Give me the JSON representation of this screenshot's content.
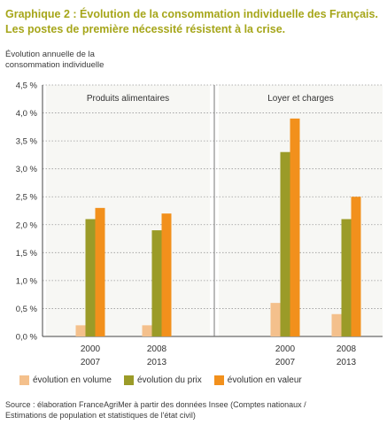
{
  "title_line1": "Graphique 2 : Évolution de la consommation individuelle des Français.",
  "title_line2": "Les postes de première nécessité résistent à la crise.",
  "ylabel_line1": "Évolution annuelle de la",
  "ylabel_line2": "consommation individuelle",
  "source_line1": "Source : élaboration FranceAgriMer à partir des données Insee (Comptes nationaux /",
  "source_line2": "Estimations de population et statistiques de l'état civil)",
  "chart_data": {
    "type": "bar",
    "yticks": [
      "0,0 %",
      "0,5 %",
      "1,0 %",
      "1,5 %",
      "2,0 %",
      "2,5 %",
      "3,0 %",
      "3,5 %",
      "4,0 %",
      "4,5 %"
    ],
    "ylim": [
      0,
      4.5
    ],
    "grid": true,
    "legend": "bottom",
    "panels": [
      {
        "label": "Produits alimentaires",
        "groups": [
          {
            "label_top": "2000",
            "label_bottom": "2007"
          },
          {
            "label_top": "2008",
            "label_bottom": "2013"
          }
        ]
      },
      {
        "label": "Loyer et charges",
        "groups": [
          {
            "label_top": "2000",
            "label_bottom": "2007"
          },
          {
            "label_top": "2008",
            "label_bottom": "2013"
          }
        ]
      }
    ],
    "series": [
      {
        "name": "évolution en volume",
        "color": "#f4c08c",
        "values": [
          0.2,
          0.2,
          0.6,
          0.4
        ]
      },
      {
        "name": "évolution du prix",
        "color": "#9b9b28",
        "values": [
          2.1,
          1.9,
          3.3,
          2.1
        ]
      },
      {
        "name": "évolution en valeur",
        "color": "#f2901c",
        "values": [
          2.3,
          2.2,
          3.9,
          2.5
        ]
      }
    ]
  }
}
